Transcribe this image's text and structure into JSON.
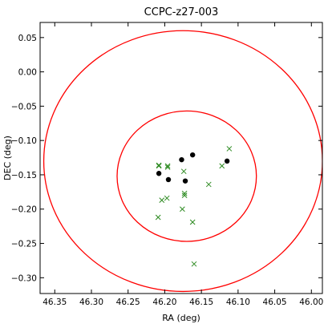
{
  "chart_data": {
    "type": "scatter",
    "title": "CCPC-z27-003",
    "xlabel": "RA (deg)",
    "ylabel": "DEC (deg)",
    "xlim": [
      46.37,
      45.985
    ],
    "ylim": [
      -0.323,
      0.072
    ],
    "x_ticks": [
      46.35,
      46.3,
      46.25,
      46.2,
      46.15,
      46.1,
      46.05,
      46.0
    ],
    "x_tick_labels": [
      "46.35",
      "46.30",
      "46.25",
      "46.20",
      "46.15",
      "46.10",
      "46.05",
      "46.00"
    ],
    "y_ticks": [
      0.05,
      0.0,
      -0.05,
      -0.1,
      -0.15,
      -0.2,
      -0.25,
      -0.3
    ],
    "y_tick_labels": [
      "0.05",
      "0.00",
      "−0.05",
      "−0.10",
      "−0.15",
      "−0.20",
      "−0.25",
      "−0.30"
    ],
    "grid": false,
    "colors": {
      "circles": "#ff0000",
      "members": "#000000",
      "others": "#2e8b22"
    },
    "circles": [
      {
        "center_ra": 46.175,
        "center_dec": -0.13,
        "radius_deg": 0.19
      },
      {
        "center_ra": 46.17,
        "center_dec": -0.152,
        "radius_deg": 0.095
      }
    ],
    "series": [
      {
        "marker": "dot",
        "points": [
          [
            46.208,
            -0.148
          ],
          [
            46.195,
            -0.157
          ],
          [
            46.177,
            -0.128
          ],
          [
            46.172,
            -0.159
          ],
          [
            46.162,
            -0.121
          ],
          [
            46.115,
            -0.13
          ]
        ]
      },
      {
        "marker": "cross",
        "points": [
          [
            46.208,
            -0.136
          ],
          [
            46.208,
            -0.137
          ],
          [
            46.196,
            -0.137
          ],
          [
            46.196,
            -0.139
          ],
          [
            46.174,
            -0.145
          ],
          [
            46.173,
            -0.177
          ],
          [
            46.173,
            -0.18
          ],
          [
            46.176,
            -0.2
          ],
          [
            46.204,
            -0.187
          ],
          [
            46.197,
            -0.184
          ],
          [
            46.209,
            -0.212
          ],
          [
            46.162,
            -0.219
          ],
          [
            46.16,
            -0.28
          ],
          [
            46.14,
            -0.164
          ],
          [
            46.122,
            -0.137
          ],
          [
            46.112,
            -0.112
          ]
        ]
      }
    ]
  }
}
